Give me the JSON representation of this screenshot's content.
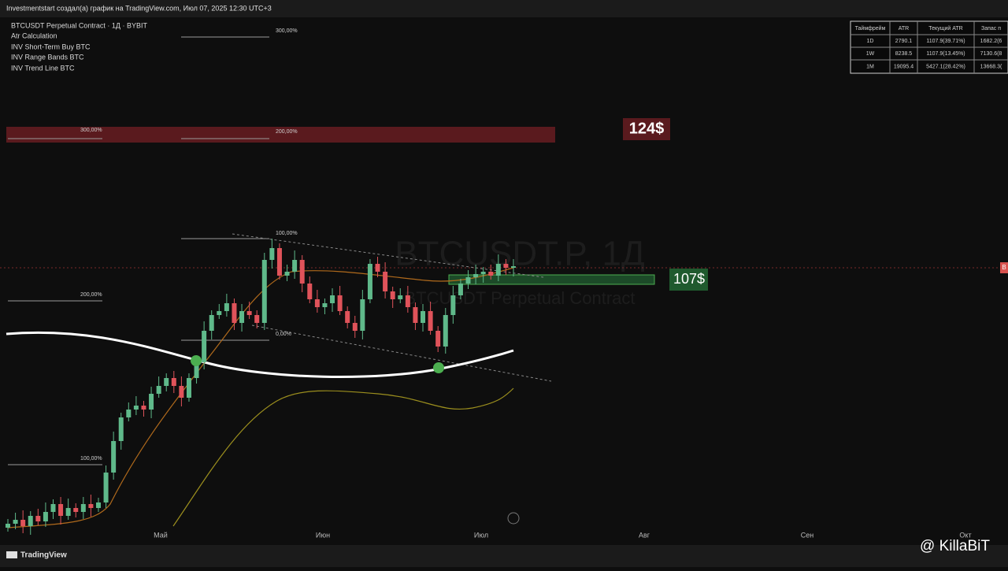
{
  "header": {
    "text": "Investmentstart создал(а) график на TradingView.com, Июл 07, 2025 12:30 UTC+3"
  },
  "legend": [
    "BTCUSDT Perpetual Contract · 1Д · BYBIT",
    "Atr Calculation",
    "INV Short-Term Buy BTC",
    "INV Range Bands BTC",
    "INV Trend Line BTC"
  ],
  "table": {
    "headers": [
      "Таймфрейм",
      "ATR",
      "Текущий ATR",
      "Запас п"
    ],
    "rows": [
      [
        "1D",
        "2790.1",
        "1107.9(39.71%)",
        "1682.2(6"
      ],
      [
        "1W",
        "8238.5",
        "1107.9(13.45%)",
        "7130.6(8"
      ],
      [
        "1M",
        "19095.4",
        "5427.1(28.42%)",
        "13668.3("
      ]
    ]
  },
  "levels": [
    "300,00%",
    "300,00%",
    "200,00%",
    "100,00%",
    "200,00%",
    "0,00%",
    "100,00%"
  ],
  "price_tags": [
    "124$",
    "107$"
  ],
  "watermark": {
    "symbol": "BTCUSDT.P, 1Д",
    "name": "BTCUSDT Perpetual Contract"
  },
  "x_axis": [
    "Май",
    "Июн",
    "Июл",
    "Авг",
    "Сен",
    "Окт"
  ],
  "right_marker": "B",
  "footer": {
    "brand": "TradingView",
    "credit": "@ KillaBiT"
  }
}
